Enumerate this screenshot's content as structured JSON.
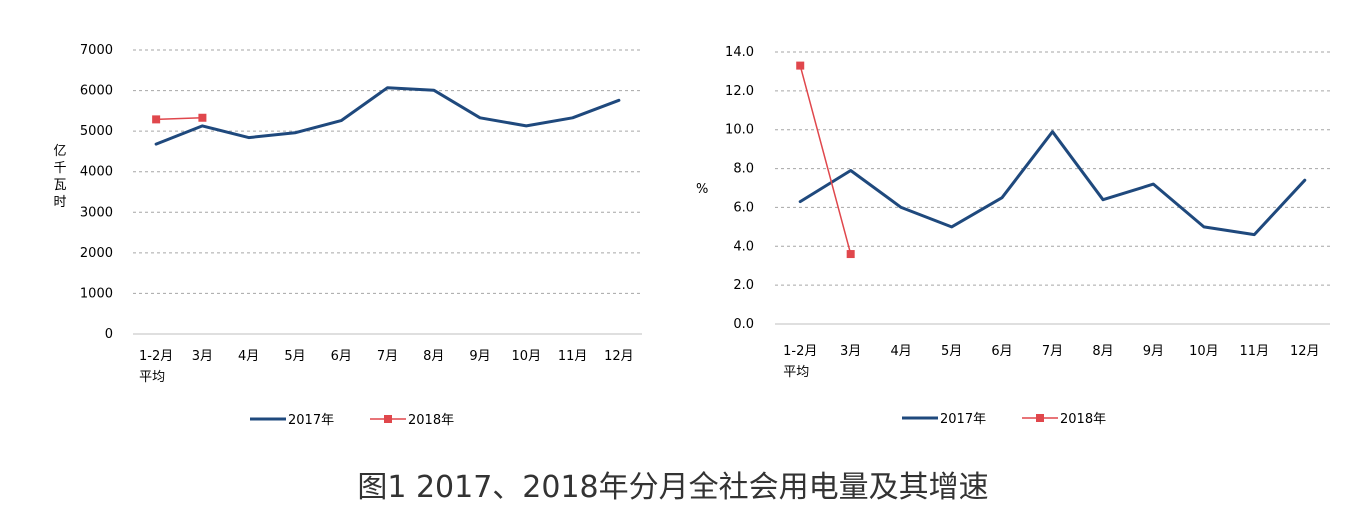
{
  "caption": "图1 2017、2018年分月全社会用电量及其增速",
  "chart_data": [
    {
      "type": "line",
      "ylabel": "亿千瓦时",
      "ylim": [
        0,
        7000
      ],
      "yticks": [
        "0",
        "1000",
        "2000",
        "3000",
        "4000",
        "5000",
        "6000",
        "7000"
      ],
      "categories": [
        "1-2月\n平均",
        "3月",
        "4月",
        "5月",
        "6月",
        "7月",
        "8月",
        "9月",
        "10月",
        "11月",
        "12月"
      ],
      "grid": true,
      "legend_position": "bottom",
      "series": [
        {
          "name": "2017年",
          "color": "#1f497d",
          "marker": "none",
          "values": [
            4680,
            5130,
            4840,
            4960,
            5260,
            6070,
            6010,
            5330,
            5130,
            5330,
            5760
          ]
        },
        {
          "name": "2018年",
          "color": "#e0474c",
          "marker": "square",
          "values": [
            5290,
            5330,
            null,
            null,
            null,
            null,
            null,
            null,
            null,
            null,
            null
          ]
        }
      ]
    },
    {
      "type": "line",
      "ylabel": "%",
      "ylim": [
        0,
        14
      ],
      "yticks": [
        "0.0",
        "2.0",
        "4.0",
        "6.0",
        "8.0",
        "10.0",
        "12.0",
        "14.0"
      ],
      "categories": [
        "1-2月\n平均",
        "3月",
        "4月",
        "5月",
        "6月",
        "7月",
        "8月",
        "9月",
        "10月",
        "11月",
        "12月"
      ],
      "grid": true,
      "legend_position": "bottom",
      "series": [
        {
          "name": "2017年",
          "color": "#1f497d",
          "marker": "none",
          "values": [
            6.3,
            7.9,
            6.0,
            5.0,
            6.5,
            9.9,
            6.4,
            7.2,
            5.0,
            4.6,
            7.4
          ]
        },
        {
          "name": "2018年",
          "color": "#e0474c",
          "marker": "square",
          "values": [
            13.3,
            3.6,
            null,
            null,
            null,
            null,
            null,
            null,
            null,
            null,
            null
          ]
        }
      ]
    }
  ]
}
